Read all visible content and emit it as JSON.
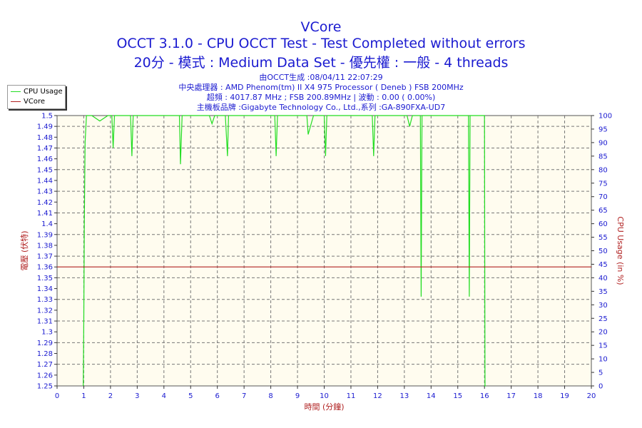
{
  "header": {
    "title": "VCore",
    "subtitle1": "OCCT 3.1.0 - CPU OCCT Test - Test Completed without errors",
    "subtitle2": "20分 - 模式 : Medium Data Set - 優先權 : 一般 - 4 threads",
    "info": [
      "由OCCT生成 :08/04/11 22:07:29",
      "中央處理器 : AMD Phenom(tm) II X4 975 Processor ( Deneb ) FSB 200MHz",
      "超頻 : 4017.87 MHz ; FSB 200.89MHz | 波動 : 0.00 ( 0.00%)",
      "主機板品牌 :Gigabyte Technology Co., Ltd.,系列 :GA-890FXA-UD7"
    ]
  },
  "colors": {
    "plot_bg": "#fffcef",
    "cpu": "#22dd22",
    "vcore": "#b02020",
    "axis_text": "#1a1ad0",
    "grid": "#777777"
  },
  "chart_data": {
    "type": "line",
    "xlabel": "時間 (分鐘)",
    "ylabel_left": "電壓 (伏特)",
    "ylabel_right": "CPU Usage (in %)",
    "xlim": [
      0,
      20
    ],
    "ylim_left": [
      1.25,
      1.5
    ],
    "ylim_right": [
      0,
      100
    ],
    "x_ticks": [
      "0",
      "1",
      "2",
      "3",
      "4",
      "5",
      "6",
      "7",
      "8",
      "9",
      "10",
      "11",
      "12",
      "13",
      "14",
      "15",
      "16",
      "17",
      "18",
      "19",
      "20"
    ],
    "y_left_ticks": [
      "1.25",
      "1.26",
      "1.27",
      "1.28",
      "1.29",
      "1.3",
      "1.31",
      "1.32",
      "1.33",
      "1.34",
      "1.35",
      "1.36",
      "1.37",
      "1.38",
      "1.39",
      "1.4",
      "1.41",
      "1.42",
      "1.43",
      "1.44",
      "1.45",
      "1.46",
      "1.47",
      "1.48",
      "1.49",
      "1.5"
    ],
    "y_right_ticks": [
      "0",
      "5",
      "10",
      "15",
      "20",
      "25",
      "30",
      "35",
      "40",
      "45",
      "50",
      "55",
      "60",
      "65",
      "70",
      "75",
      "80",
      "85",
      "90",
      "95",
      "100"
    ],
    "grid": true,
    "legend_position": "top-left",
    "series": [
      {
        "name": "CPU Usage",
        "axis": "right",
        "x": [
          0.98,
          1.0,
          1.02,
          1.05,
          1.1,
          1.3,
          1.6,
          1.9,
          2.05,
          2.1,
          2.15,
          2.3,
          2.6,
          2.75,
          2.8,
          2.85,
          3.0,
          3.5,
          4.0,
          4.5,
          4.58,
          4.62,
          4.68,
          4.8,
          5.0,
          5.4,
          5.7,
          5.8,
          5.9,
          6.0,
          6.3,
          6.38,
          6.42,
          6.5,
          7.0,
          7.5,
          8.0,
          8.15,
          8.2,
          8.25,
          8.4,
          8.8,
          9.0,
          9.3,
          9.35,
          9.4,
          9.6,
          9.65,
          9.7,
          9.9,
          10.0,
          10.05,
          10.1,
          10.3,
          10.8,
          11.0,
          11.7,
          11.8,
          11.85,
          11.9,
          12.4,
          13.0,
          13.1,
          13.2,
          13.3,
          13.5,
          13.6,
          13.63,
          13.66,
          13.7,
          14.0,
          14.5,
          15.0,
          15.3,
          15.4,
          15.43,
          15.46,
          15.5,
          15.8,
          15.95,
          16.0,
          16.02,
          16.05
        ],
        "y": [
          0,
          25,
          60,
          90,
          100,
          100,
          98,
          100,
          100,
          88,
          100,
          100,
          100,
          100,
          85,
          100,
          100,
          100,
          100,
          100,
          100,
          82,
          100,
          100,
          100,
          100,
          100,
          97,
          100,
          100,
          100,
          85,
          100,
          100,
          100,
          100,
          100,
          100,
          85,
          100,
          100,
          100,
          100,
          100,
          100,
          93,
          100,
          100,
          100,
          100,
          100,
          85,
          100,
          100,
          100,
          100,
          100,
          100,
          85,
          100,
          100,
          100,
          100,
          96,
          100,
          100,
          100,
          33,
          100,
          100,
          100,
          100,
          100,
          100,
          100,
          33,
          100,
          100,
          100,
          100,
          100,
          0,
          0
        ]
      },
      {
        "name": "VCore",
        "axis": "left",
        "x": [
          0,
          20
        ],
        "y": [
          1.36,
          1.36
        ]
      }
    ]
  }
}
